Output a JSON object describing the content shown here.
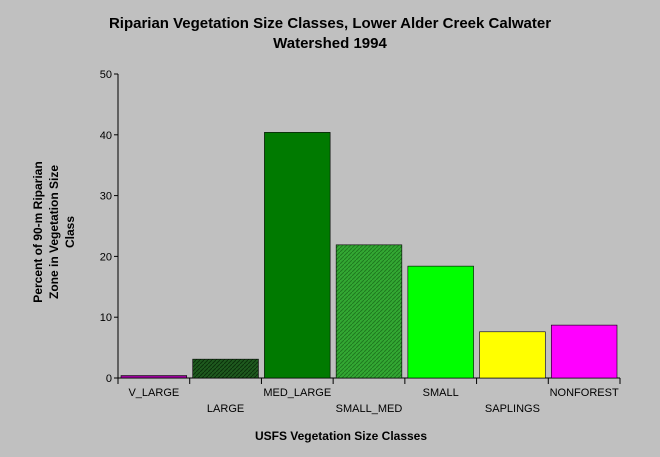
{
  "chart_data": {
    "type": "bar",
    "title_lines": [
      "Riparian Vegetation Size Classes, Lower Alder Creek Calwater",
      "Watershed 1994"
    ],
    "xlabel": "USFS Vegetation Size Classes",
    "ylabel_lines": [
      "Percent of 90-m Riparian",
      "Zone in Vegetation Size",
      "Class"
    ],
    "categories": [
      "V_LARGE",
      "LARGE",
      "MED_LARGE",
      "SMALL_MED",
      "SMALL",
      "SAPLINGS",
      "NONFOREST"
    ],
    "values": [
      0.4,
      3.1,
      40.4,
      21.9,
      18.4,
      7.6,
      8.7
    ],
    "ylim": [
      0,
      50
    ],
    "yticks": [
      0,
      10,
      20,
      30,
      40,
      50
    ],
    "grid": false,
    "legend": "none",
    "colors": [
      "#990099",
      "#1e5a1e",
      "#007a00",
      "#2e9e2e",
      "#00ff00",
      "#ffff00",
      "#ff00ff"
    ],
    "patterns": [
      "solid",
      "hatch",
      "solid",
      "hatch",
      "solid",
      "solid",
      "solid"
    ]
  }
}
